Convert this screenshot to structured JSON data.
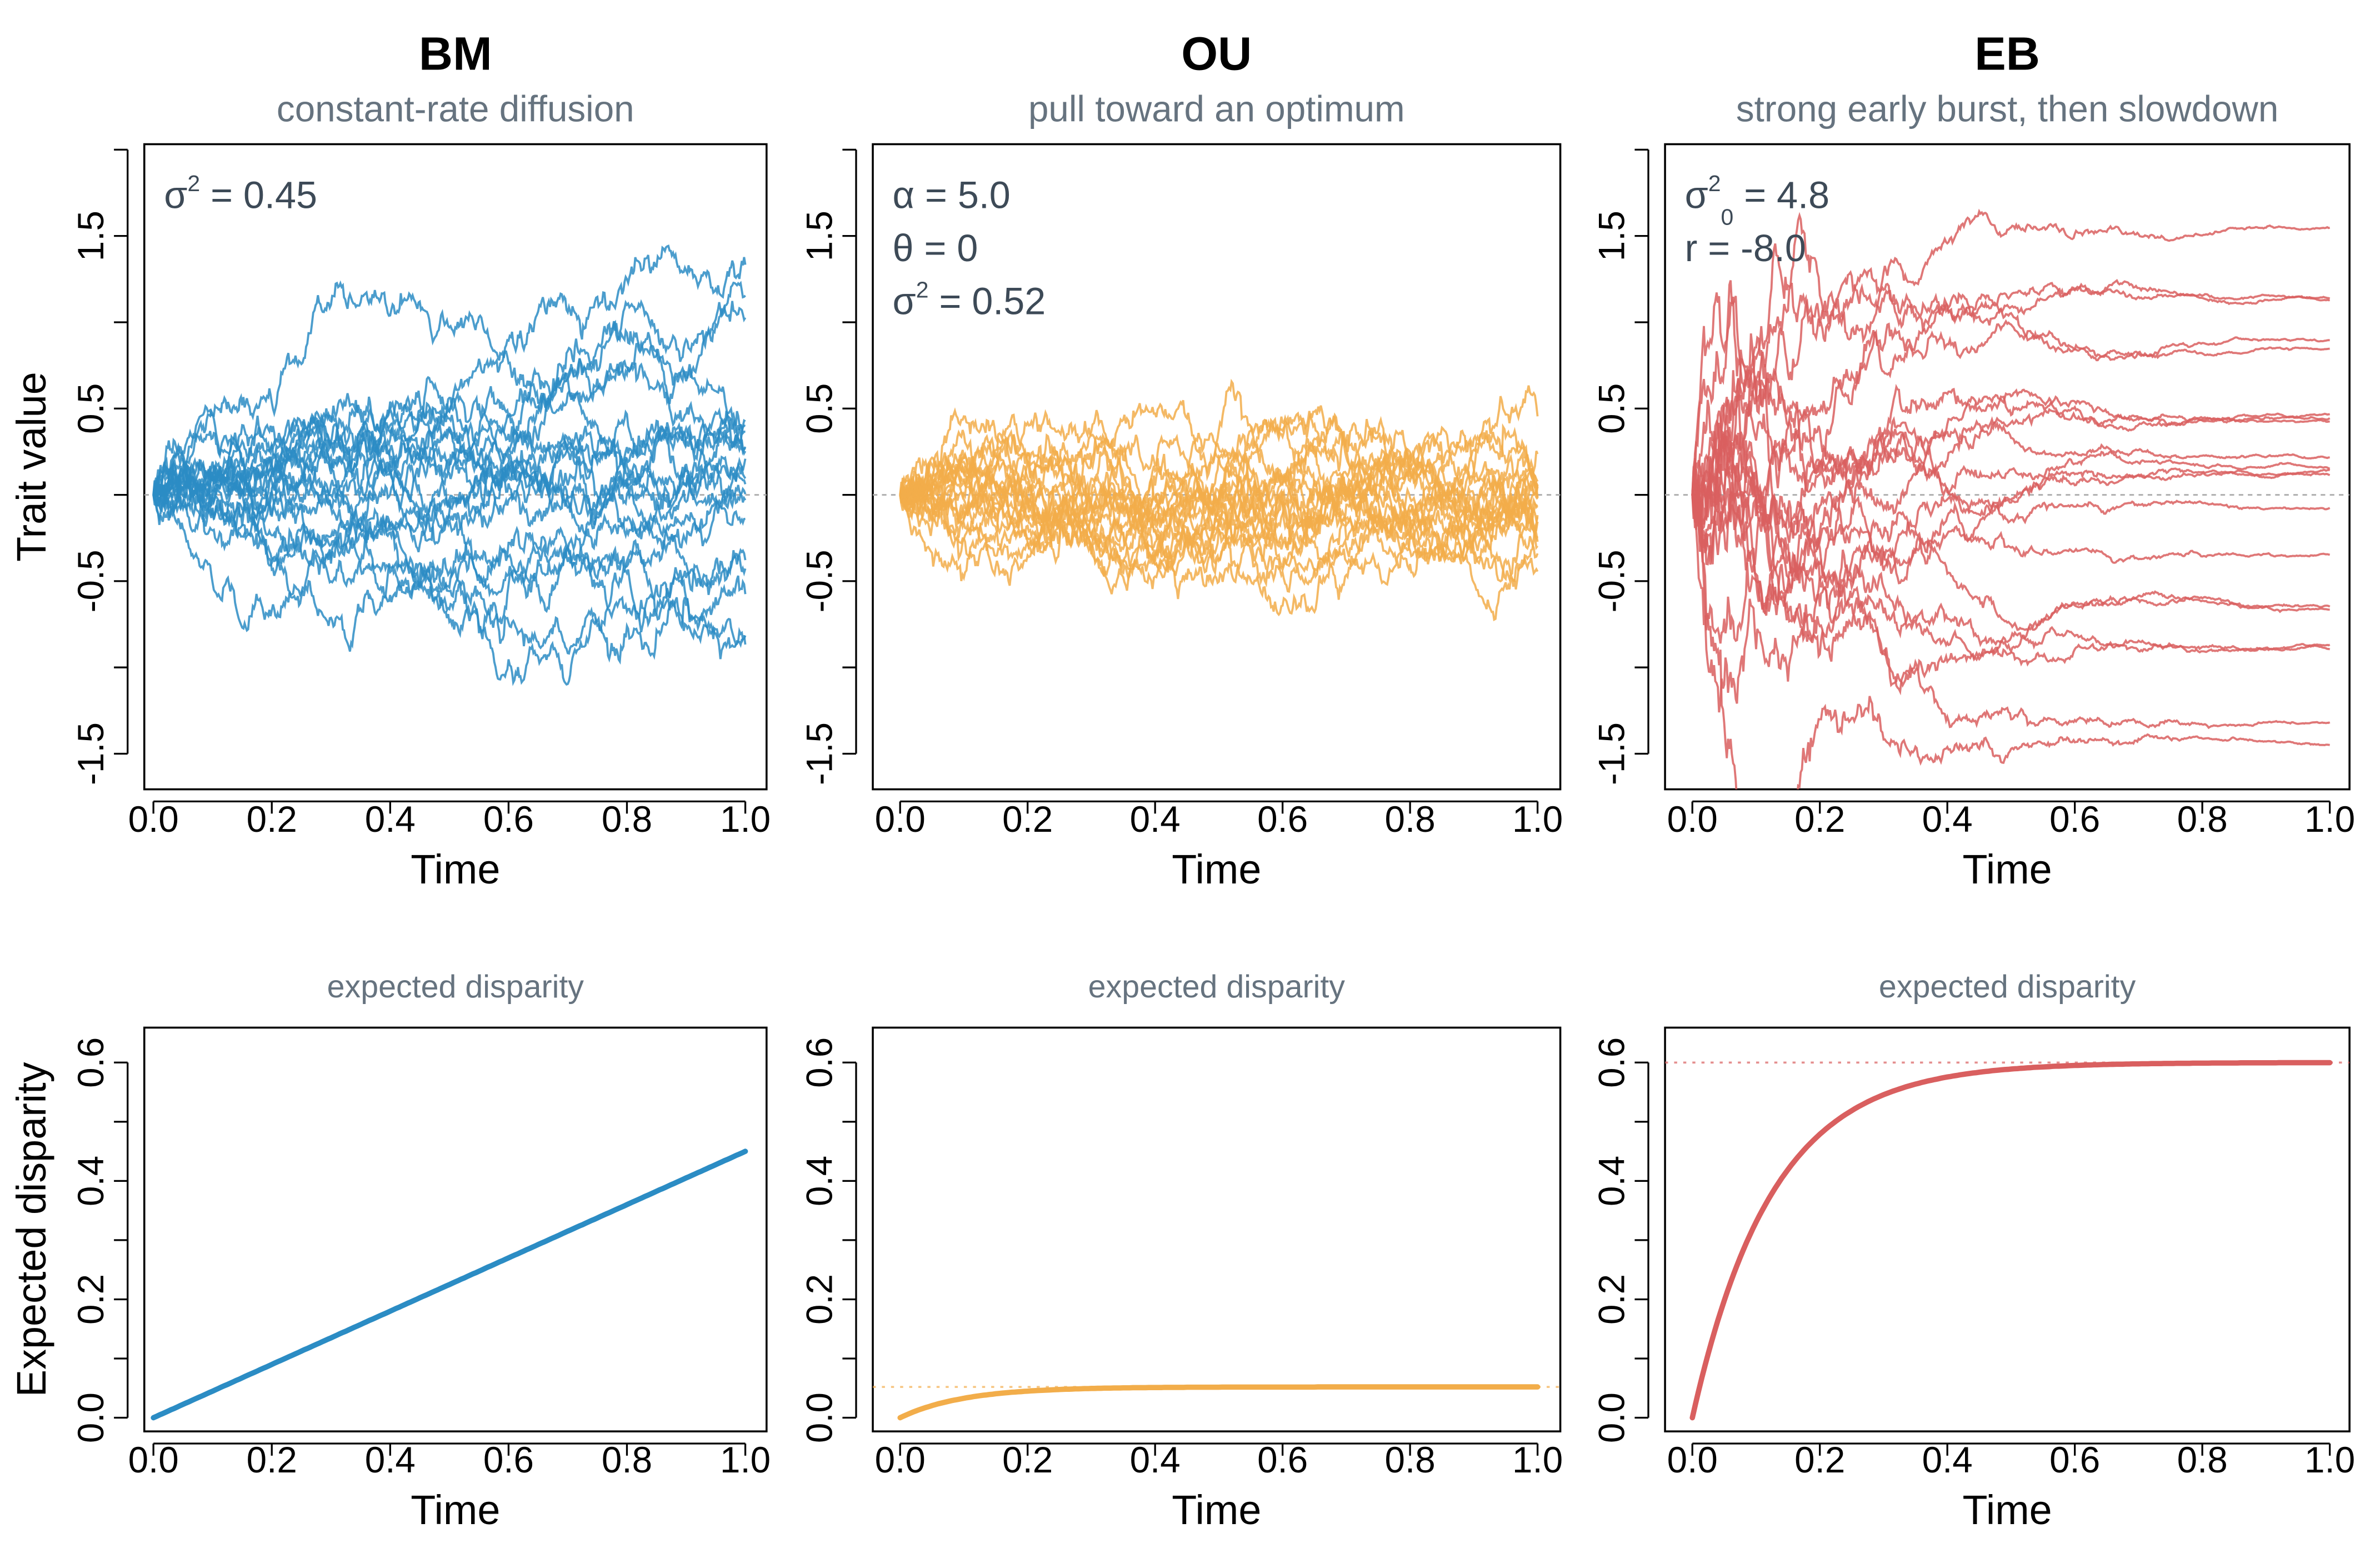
{
  "colors": {
    "BM": "#2b8cc4",
    "OU": "#f2ad4a",
    "EB": "#d95f5f",
    "reference_line": "#aaaaaa"
  },
  "chart_data": [
    {
      "type": "line",
      "model": "BM",
      "title": "BM",
      "subtitle": "constant-rate diffusion",
      "xlabel": "Time",
      "ylabel": "Trait value",
      "xlim": [
        0,
        1
      ],
      "ylim": [
        -1.7,
        2.0
      ],
      "x_ticks": [
        "0.0",
        "0.2",
        "0.4",
        "0.6",
        "0.8",
        "1.0"
      ],
      "y_ticks": [
        "-1.5",
        "-0.5",
        "0.5",
        "1.5"
      ],
      "annotation": [
        {
          "sym": "σ",
          "sup": "2",
          "sub": "",
          "rest": " = 0.45"
        }
      ],
      "params": {
        "sigma2": 0.45
      },
      "n_paths": 20,
      "reference_y": 0,
      "grid": false
    },
    {
      "type": "line",
      "model": "OU",
      "title": "OU",
      "subtitle": "pull toward an optimum",
      "xlabel": "Time",
      "ylabel": "",
      "xlim": [
        0,
        1
      ],
      "ylim": [
        -1.7,
        2.0
      ],
      "x_ticks": [
        "0.0",
        "0.2",
        "0.4",
        "0.6",
        "0.8",
        "1.0"
      ],
      "y_ticks": [
        "-1.5",
        "-0.5",
        "0.5",
        "1.5"
      ],
      "annotation": [
        {
          "sym": "α",
          "sup": "",
          "sub": "",
          "rest": " = 5.0"
        },
        {
          "sym": "θ",
          "sup": "",
          "sub": "",
          "rest": " = 0"
        },
        {
          "sym": "σ",
          "sup": "2",
          "sub": "",
          "rest": " = 0.52"
        }
      ],
      "params": {
        "alpha": 5.0,
        "theta": 0,
        "sigma2": 0.52
      },
      "n_paths": 20,
      "reference_y": 0,
      "grid": false
    },
    {
      "type": "line",
      "model": "EB",
      "title": "EB",
      "subtitle": "strong early burst, then slowdown",
      "xlabel": "Time",
      "ylabel": "",
      "xlim": [
        0,
        1
      ],
      "ylim": [
        -1.7,
        2.0
      ],
      "x_ticks": [
        "0.0",
        "0.2",
        "0.4",
        "0.6",
        "0.8",
        "1.0"
      ],
      "y_ticks": [
        "-1.5",
        "-0.5",
        "0.5",
        "1.5"
      ],
      "annotation": [
        {
          "sym": "σ",
          "sup": "2",
          "sub": "0",
          "rest": " = 4.8"
        },
        {
          "sym": "r",
          "sup": "",
          "sub": "",
          "rest": " = -8.0"
        }
      ],
      "params": {
        "sigma0_2": 4.8,
        "r": -8.0
      },
      "n_paths": 20,
      "reference_y": 0,
      "grid": false
    },
    {
      "type": "line",
      "model": "BM",
      "subtitle": "expected disparity",
      "xlabel": "Time",
      "ylabel": "Expected disparity",
      "xlim": [
        0,
        1
      ],
      "ylim": [
        -0.02,
        0.66
      ],
      "x_ticks": [
        "0.0",
        "0.2",
        "0.4",
        "0.6",
        "0.8",
        "1.0"
      ],
      "y_ticks": [
        "0.0",
        "0.2",
        "0.4",
        "0.6"
      ],
      "x": [
        0,
        0.25,
        0.5,
        0.75,
        1.0
      ],
      "y": [
        0,
        0.1125,
        0.225,
        0.3375,
        0.45
      ],
      "formula": "sigma2 * t",
      "reference_y": null
    },
    {
      "type": "line",
      "model": "OU",
      "subtitle": "expected disparity",
      "xlabel": "Time",
      "ylabel": "",
      "xlim": [
        0,
        1
      ],
      "ylim": [
        -0.02,
        0.66
      ],
      "x_ticks": [
        "0.0",
        "0.2",
        "0.4",
        "0.6",
        "0.8",
        "1.0"
      ],
      "y_ticks": [
        "0.0",
        "0.2",
        "0.4",
        "0.6"
      ],
      "x": [
        0,
        0.1,
        0.2,
        0.4,
        0.6,
        1.0
      ],
      "y": [
        0,
        0.033,
        0.045,
        0.052,
        0.052,
        0.052
      ],
      "formula": "sigma2/(2*alpha)*(1-exp(-2*alpha*t))",
      "reference_y": 0.052
    },
    {
      "type": "line",
      "model": "EB",
      "subtitle": "expected disparity",
      "xlabel": "Time",
      "ylabel": "",
      "xlim": [
        0,
        1
      ],
      "ylim": [
        -0.02,
        0.66
      ],
      "x_ticks": [
        "0.0",
        "0.2",
        "0.4",
        "0.6",
        "0.8",
        "1.0"
      ],
      "y_ticks": [
        "0.0",
        "0.2",
        "0.4",
        "0.6"
      ],
      "x": [
        0,
        0.1,
        0.2,
        0.3,
        0.4,
        0.6,
        1.0
      ],
      "y": [
        0,
        0.33,
        0.48,
        0.55,
        0.58,
        0.595,
        0.6
      ],
      "formula": "sigma0_2*(1-exp(r*t))/(-r)",
      "reference_y": 0.6
    }
  ]
}
